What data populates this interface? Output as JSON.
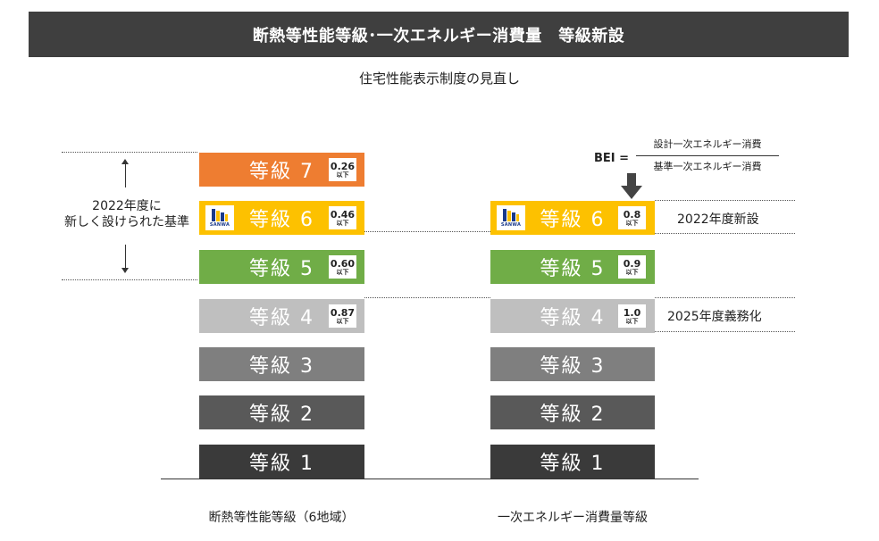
{
  "header": {
    "title": "断熱等性能等級･一次エネルギー消費量　等級新設",
    "subtitle": "住宅性能表示制度の見直し"
  },
  "colors": {
    "grade7": "#ee7d31",
    "grade6": "#fdc100",
    "grade5": "#70ad47",
    "grade4": "#bfbfbf",
    "grade3": "#7f7f7f",
    "grade2": "#595959",
    "grade1": "#3a3a3a",
    "title_bg": "#3f3f3f"
  },
  "left_column": {
    "label": "断熱等性能等級（6地域）",
    "grades": [
      {
        "label": "等級 7",
        "value": "0.26",
        "suffix": "以下"
      },
      {
        "label": "等級 6",
        "value": "0.46",
        "suffix": "以下"
      },
      {
        "label": "等級 5",
        "value": "0.60",
        "suffix": "以下"
      },
      {
        "label": "等級 4",
        "value": "0.87",
        "suffix": "以下"
      },
      {
        "label": "等級 3"
      },
      {
        "label": "等級 2"
      },
      {
        "label": "等級 1"
      }
    ],
    "note_line1": "2022年度に",
    "note_line2": "新しく設けられた基準"
  },
  "right_column": {
    "label": "一次エネルギー消費量等級",
    "grades": [
      {
        "label": "等級 6",
        "value": "0.8",
        "suffix": "以下"
      },
      {
        "label": "等級 5",
        "value": "0.9",
        "suffix": "以下"
      },
      {
        "label": "等級 4",
        "value": "1.0",
        "suffix": "以下"
      },
      {
        "label": "等級 3"
      },
      {
        "label": "等級 2"
      },
      {
        "label": "等級 1"
      }
    ],
    "note_2022": "2022年度新設",
    "note_2025": "2025年度義務化"
  },
  "bei": {
    "label": "BEI =",
    "numerator": "設計一次エネルギー消費",
    "denominator": "基準一次エネルギー消費"
  },
  "logo": {
    "text": "SANWA"
  }
}
